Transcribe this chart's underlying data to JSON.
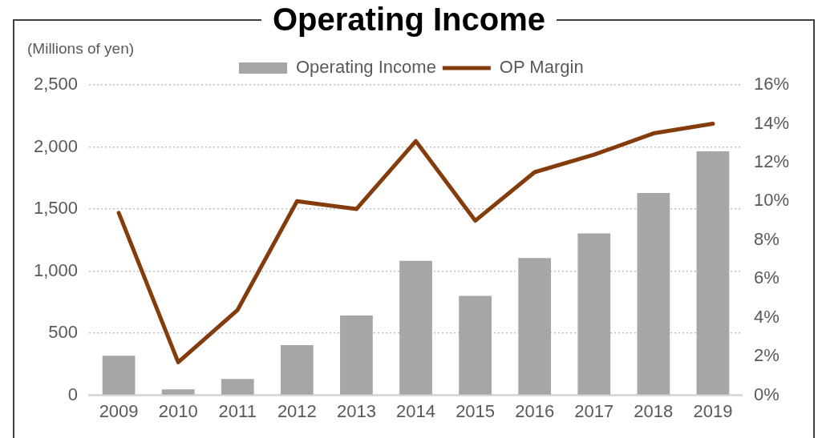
{
  "chart_data": {
    "type": "bar",
    "title": "Operating Income",
    "ylabel": "(Millions of yen)",
    "categories": [
      "2009",
      "2010",
      "2011",
      "2012",
      "2013",
      "2014",
      "2015",
      "2016",
      "2017",
      "2018",
      "2019"
    ],
    "series": [
      {
        "name": "Operating Income",
        "color": "#a6a6a6",
        "values": [
          318,
          48,
          132,
          403,
          643,
          1082,
          800,
          1106,
          1304,
          1629,
          1965
        ]
      },
      {
        "name": "OP Margin",
        "type": "line",
        "axis": "y2",
        "color": "#843c0c",
        "values": [
          9.4,
          1.7,
          4.4,
          10.0,
          9.6,
          13.1,
          9.0,
          11.5,
          12.4,
          13.5,
          14.0
        ]
      }
    ],
    "ylim": [
      0,
      2500
    ],
    "yticks": [
      {
        "value": 0,
        "label": "0"
      },
      {
        "value": 500,
        "label": "500"
      },
      {
        "value": 1000,
        "label": "1,000"
      },
      {
        "value": 1500,
        "label": "1,500"
      },
      {
        "value": 2000,
        "label": "2,000"
      },
      {
        "value": 2500,
        "label": "2,500"
      }
    ],
    "y2lim": [
      0,
      16
    ],
    "y2ticks": [
      {
        "value": 0,
        "label": "0%"
      },
      {
        "value": 2,
        "label": "2%"
      },
      {
        "value": 4,
        "label": "4%"
      },
      {
        "value": 6,
        "label": "6%"
      },
      {
        "value": 8,
        "label": "8%"
      },
      {
        "value": 10,
        "label": "10%"
      },
      {
        "value": 12,
        "label": "12%"
      },
      {
        "value": 14,
        "label": "14%"
      },
      {
        "value": 16,
        "label": "16%"
      }
    ],
    "grid": "y",
    "legend": "top"
  }
}
